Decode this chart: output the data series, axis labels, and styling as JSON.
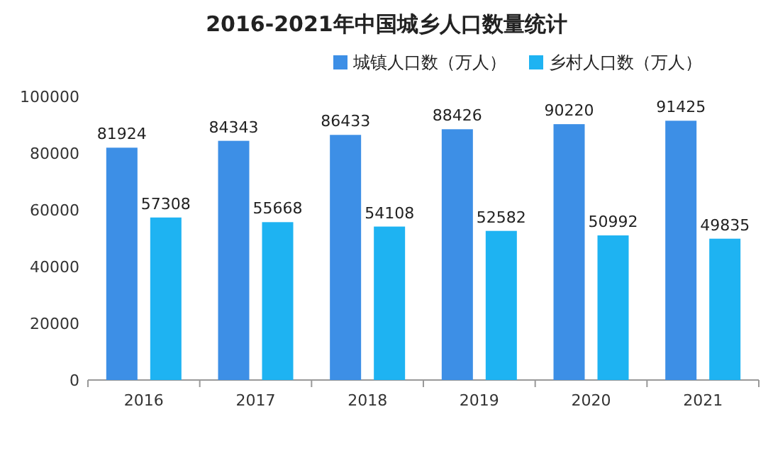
{
  "chart_data": {
    "type": "bar",
    "title": "2016-2021年中国城乡人口数量统计",
    "categories": [
      "2016",
      "2017",
      "2018",
      "2019",
      "2020",
      "2021"
    ],
    "series": [
      {
        "name": "城镇人口数（万人）",
        "color": "#3d8fe6",
        "values": [
          81924,
          84343,
          86433,
          88426,
          90220,
          91425
        ]
      },
      {
        "name": "乡村人口数（万人）",
        "color": "#1eb3f2",
        "values": [
          57308,
          55668,
          54108,
          52582,
          50992,
          49835
        ]
      }
    ],
    "ylim": [
      0,
      100000
    ],
    "yticks": [
      0,
      20000,
      40000,
      60000,
      80000,
      100000
    ],
    "data_labels": true,
    "legend": "top",
    "grid": false
  }
}
